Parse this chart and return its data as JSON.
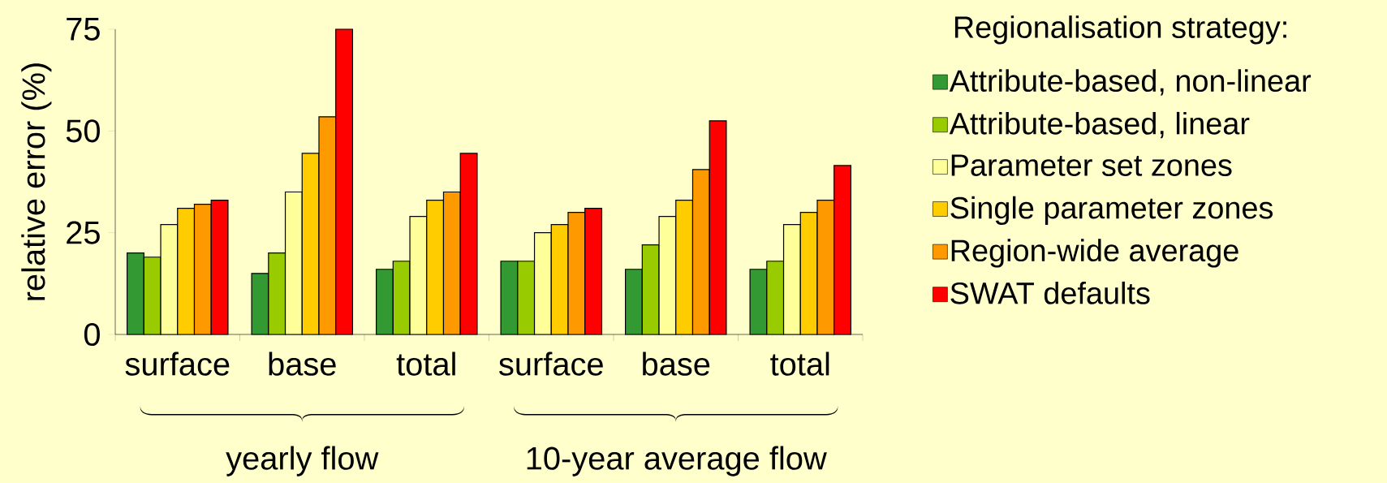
{
  "chart_data": {
    "type": "bar",
    "ylabel": "relative error (%)",
    "legend_title": "Regionalisation strategy:",
    "categories": [
      "surface",
      "base",
      "total",
      "surface",
      "base",
      "total"
    ],
    "series": [
      {
        "name": "Attribute-based, non-linear",
        "color": "#339933",
        "values": [
          20,
          15,
          16,
          18,
          16,
          16
        ]
      },
      {
        "name": "Attribute-based, linear",
        "color": "#99cc00",
        "values": [
          19,
          20,
          18,
          18,
          22,
          18
        ]
      },
      {
        "name": "Parameter set zones",
        "color": "#ffff99",
        "values": [
          27,
          35,
          29,
          25,
          29,
          27
        ]
      },
      {
        "name": "Single parameter zones",
        "color": "#ffcc00",
        "values": [
          31,
          44.5,
          33,
          27,
          33,
          30
        ]
      },
      {
        "name": "Region-wide average",
        "color": "#ff9900",
        "values": [
          32,
          53.5,
          35,
          30,
          40.5,
          33
        ]
      },
      {
        "name": "SWAT defaults",
        "color": "#ff0000",
        "values": [
          33,
          75,
          44.5,
          31,
          52.5,
          41.5
        ]
      }
    ],
    "annotations": [
      "yearly flow",
      "10-year average flow"
    ],
    "ylim": [
      0,
      75
    ],
    "yticks": [
      0,
      25,
      50,
      75
    ],
    "legend": "right"
  }
}
